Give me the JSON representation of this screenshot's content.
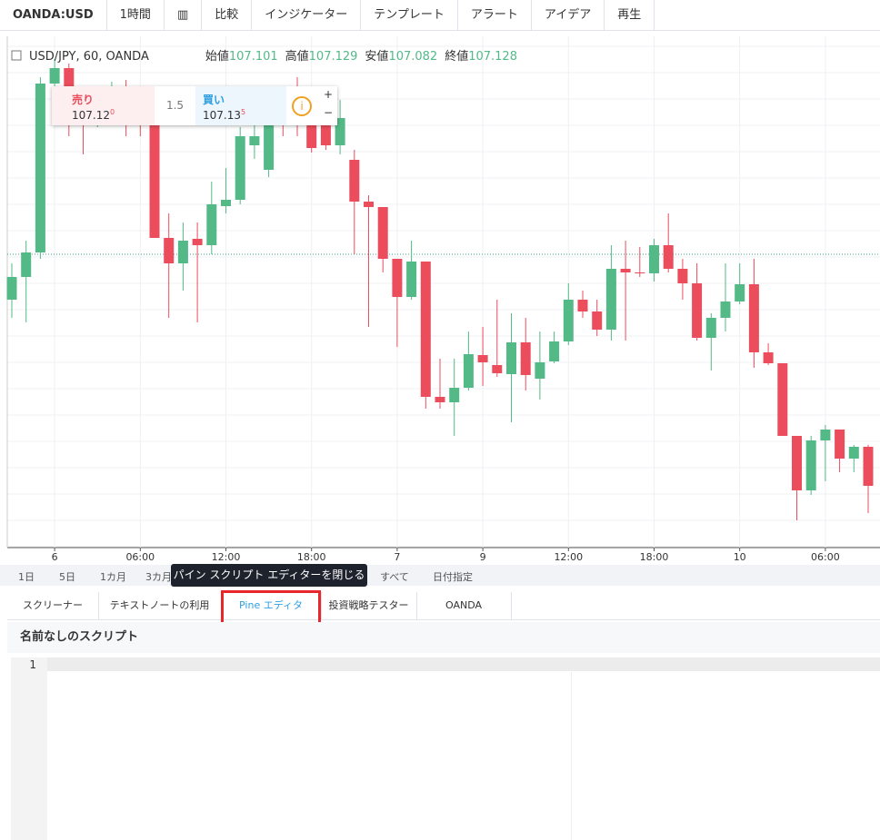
{
  "toolbar": {
    "symbol": "OANDA:USD",
    "interval": "1時間",
    "buttons": [
      "比較",
      "インジケーター",
      "テンプレート",
      "アラート",
      "アイデア",
      "再生"
    ]
  },
  "chart_data": {
    "type": "candlestick",
    "title": "USD/JPY, 60, OANDA",
    "legend": [
      {
        "label": "始値",
        "value": 107.101
      },
      {
        "label": "高値",
        "value": 107.129
      },
      {
        "label": "安値",
        "value": 107.082
      },
      {
        "label": "終値",
        "value": 107.128
      }
    ],
    "x": [
      null,
      null,
      null,
      "6",
      null,
      null,
      null,
      null,
      null,
      "06:00",
      null,
      null,
      null,
      null,
      null,
      "12:00",
      null,
      null,
      null,
      null,
      null,
      "18:00",
      null,
      null,
      null,
      null,
      null,
      "7",
      null,
      null,
      null,
      null,
      null,
      "9",
      null,
      null,
      null,
      null,
      null,
      "12:00",
      null,
      null,
      null,
      null,
      null,
      "18:00",
      null,
      null,
      null,
      null,
      null,
      "10",
      null,
      null,
      null,
      null,
      null,
      "06:00",
      null,
      null,
      null
    ],
    "open": [
      107.078,
      107.103,
      107.13,
      107.316,
      107.333,
      107.308,
      107.283,
      107.293,
      107.308,
      107.283,
      107.27,
      107.146,
      107.118,
      107.145,
      107.138,
      107.181,
      107.188,
      107.248,
      107.221,
      107.298,
      107.308,
      107.273,
      107.273,
      107.248,
      107.232,
      107.186,
      107.18,
      107.123,
      107.081,
      107.12,
      106.971,
      106.965,
      106.981,
      107.017,
      107.006,
      106.996,
      107.031,
      106.991,
      107.01,
      107.032,
      107.078,
      107.065,
      107.045,
      107.112,
      107.108,
      107.107,
      107.138,
      107.112,
      107.096,
      107.036,
      107.058,
      107.076,
      107.095,
      107.02,
      107.008,
      106.928,
      106.868,
      106.923,
      106.935,
      106.903,
      106.916
    ],
    "high": [
      107.118,
      107.143,
      107.323,
      107.343,
      107.338,
      107.313,
      107.308,
      107.318,
      107.32,
      107.298,
      107.278,
      107.173,
      107.163,
      107.163,
      107.208,
      107.223,
      107.268,
      107.273,
      107.288,
      107.313,
      107.323,
      107.288,
      107.293,
      107.298,
      107.243,
      107.193,
      107.18,
      107.123,
      107.143,
      107.12,
      107.013,
      107.013,
      107.043,
      107.048,
      107.078,
      107.063,
      107.058,
      107.043,
      107.043,
      107.096,
      107.088,
      107.078,
      107.138,
      107.143,
      107.136,
      107.145,
      107.173,
      107.123,
      107.118,
      107.063,
      107.118,
      107.118,
      107.123,
      107.03,
      107.008,
      106.928,
      106.928,
      106.94,
      106.935,
      106.918,
      106.918
    ],
    "low": [
      107.058,
      107.053,
      107.123,
      107.308,
      107.258,
      107.238,
      107.268,
      107.278,
      107.258,
      107.258,
      107.146,
      107.058,
      107.088,
      107.053,
      107.128,
      107.173,
      107.183,
      107.233,
      107.213,
      107.258,
      107.258,
      107.24,
      107.243,
      107.238,
      107.128,
      107.048,
      107.108,
      107.026,
      107.078,
      106.958,
      106.958,
      106.928,
      106.978,
      106.983,
      106.993,
      106.943,
      106.978,
      106.968,
      107.008,
      107.028,
      107.058,
      107.038,
      107.033,
      107.033,
      107.103,
      107.098,
      107.108,
      107.078,
      107.033,
      107.0,
      107.043,
      107.073,
      107.003,
      107.006,
      106.928,
      106.835,
      106.863,
      106.878,
      106.888,
      106.888,
      106.843
    ],
    "close": [
      107.103,
      107.13,
      107.316,
      107.333,
      107.308,
      107.29,
      107.296,
      107.308,
      107.278,
      107.27,
      107.146,
      107.118,
      107.143,
      107.138,
      107.183,
      107.188,
      107.258,
      107.258,
      107.273,
      107.278,
      107.273,
      107.245,
      107.248,
      107.278,
      107.186,
      107.18,
      107.123,
      107.081,
      107.12,
      106.971,
      106.965,
      106.981,
      107.018,
      107.009,
      106.997,
      107.031,
      106.995,
      107.009,
      107.032,
      107.078,
      107.065,
      107.045,
      107.112,
      107.108,
      107.107,
      107.138,
      107.112,
      107.096,
      107.036,
      107.058,
      107.076,
      107.095,
      107.02,
      107.008,
      106.928,
      106.868,
      106.923,
      106.935,
      106.903,
      106.916,
      106.873
    ],
    "ylim": [
      106.805,
      107.366
    ],
    "up_color": "#53b987",
    "down_color": "#eb4d5c",
    "grid": true
  },
  "order_panel": {
    "sell_label": "売り",
    "sell_price": 107.12,
    "sell_digit": 0,
    "spread": 1.5,
    "buy_label": "買い",
    "buy_price": 107.13,
    "buy_digit": 5
  },
  "range_bar": [
    "1日",
    "5日",
    "1カ月",
    "3カ月",
    "すべて",
    "日付指定"
  ],
  "tooltip": "パイン スクリプト エディターを閉じる",
  "tabs": [
    "スクリーナー",
    "テキストノートの利用",
    "Pine エディタ",
    "投資戦略テスター",
    "OANDA"
  ],
  "editor": {
    "title": "名前なしのスクリプト",
    "line_numbers": [
      1
    ]
  }
}
